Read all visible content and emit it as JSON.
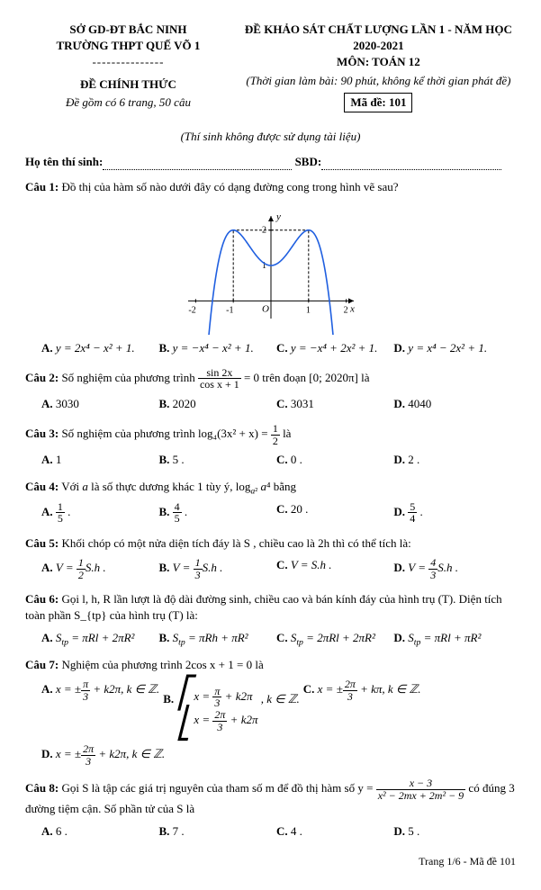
{
  "header": {
    "left1": "SỞ GD-ĐT BẮC NINH",
    "left2": "TRƯỜNG THPT QUẾ VÕ 1",
    "left3": "ĐỀ CHÍNH THỨC",
    "left4": "Đề gồm có  6 trang, 50 câu",
    "right1": "ĐỀ  KHẢO SÁT CHẤT LƯỢNG LẦN 1 - NĂM HỌC 2020-2021",
    "right2": "MÔN: TOÁN  12",
    "right3": "(Thời gian làm bài: 90 phút, không kể thời gian phát đề)",
    "code_label": "Mã đề: 101"
  },
  "note": "(Thí sinh không được sử dụng tài liệu)",
  "fill": {
    "name_label": "Họ tên thí sinh:",
    "sbd_label": "SBD:"
  },
  "q1": {
    "label": "Câu 1:",
    "stem": "Đồ thị của hàm số nào dưới đây có dạng đường cong trong hình vẽ sau?",
    "optA": "y = 2x⁴ − x² + 1.",
    "optB": "y = −x⁴ − x² + 1.",
    "optC": "y = −x⁴ + 2x² + 1.",
    "optD": "y = x⁴ − 2x² + 1.",
    "graph": {
      "xmin": -2.2,
      "xmax": 2.2,
      "ymin": -0.5,
      "ymax": 2.4,
      "xticks": [
        -2,
        -1,
        1,
        2
      ],
      "yticks": [
        1,
        2
      ],
      "curve_color": "#1f5fe0",
      "axis_color": "#000",
      "dash_color": "#000"
    }
  },
  "q2": {
    "label": "Câu 2:",
    "stem_a": "Số nghiệm  của phương trình ",
    "stem_b": " = 0 trên đoạn  [0; 2020π]  là",
    "frac_n": "sin 2x",
    "frac_d": "cos x + 1",
    "A": "3030",
    "B": "2020",
    "C": "3031",
    "D": "4040"
  },
  "q3": {
    "label": "Câu 3:",
    "stem_a": "Số nghiệm của phương trình  log₄(3x² + x) = ",
    "stem_b": " là",
    "half_n": "1",
    "half_d": "2",
    "A": "1",
    "B": "5 .",
    "C": "0 .",
    "D": "2 ."
  },
  "q4": {
    "label": "Câu 4:",
    "stem": "Với  a  là số thực dương khác  1  tùy ý,  log_{a²} a⁴  bằng",
    "A_n": "1",
    "A_d": "5",
    "B_n": "4",
    "B_d": "5",
    "C": "20 .",
    "D_n": "5",
    "D_d": "4"
  },
  "q5": {
    "label": "Câu 5:",
    "stem": "Khối chóp có một nửa diện tích đáy là  S , chiều cao là  2h  thì có thể tích là:",
    "A_pre": "V = ",
    "A_n": "1",
    "A_d": "2",
    "A_post": "S.h .",
    "B_pre": "V = ",
    "B_n": "1",
    "B_d": "3",
    "B_post": "S.h .",
    "C": "V = S.h .",
    "D_pre": "V = ",
    "D_n": "4",
    "D_d": "3",
    "D_post": "S.h ."
  },
  "q6": {
    "label": "Câu 6:",
    "stem": "Gọi  l, h, R  lần lượt là độ dài đường sinh, chiều cao và bán kính đáy của hình trụ (T). Diện tích toàn phần  S_{tp}  của hình trụ (T) là:",
    "A": "S_{tp} = πRl + 2πR²",
    "B": "S_{tp} = πRh + πR²",
    "C": "S_{tp} = 2πRl + 2πR²",
    "D": "S_{tp} = πRl + πR²"
  },
  "q7": {
    "label": "Câu 7:",
    "stem": "Nghiệm của phương trình   2cos x + 1 = 0 là",
    "A_pre": "x = ±",
    "A_n": "π",
    "A_d": "3",
    "A_post": " + k2π,  k ∈ ℤ.",
    "B_r1_pre": "x = ",
    "B_r1_n": "π",
    "B_r1_d": "3",
    "B_r1_post": " + k2π",
    "B_r2_pre": "x = ",
    "B_r2_n": "2π",
    "B_r2_d": "3",
    "B_r2_post": " + k2π",
    "B_post": " ,  k ∈ ℤ.",
    "C_pre": "x = ±",
    "C_n": "2π",
    "C_d": "3",
    "C_post": " + kπ,  k ∈ ℤ.",
    "D_pre": "x = ±",
    "D_n": "2π",
    "D_d": "3",
    "D_post": " + k2π,  k ∈ ℤ."
  },
  "q8": {
    "label": "Câu 8:",
    "stem_a": "   Gọi S là tập các giá trị nguyên  của tham số  m  để đồ thị hàm số  y = ",
    "stem_b": "  có đúng  3  đường tiệm cận. Số phần tử của S là",
    "frac_n": "x − 3",
    "frac_d": "x² − 2mx + 2m² − 9",
    "A": "6 .",
    "B": "7 .",
    "C": "4 .",
    "D": "5 ."
  },
  "footer": "Trang 1/6 - Mã đề 101"
}
